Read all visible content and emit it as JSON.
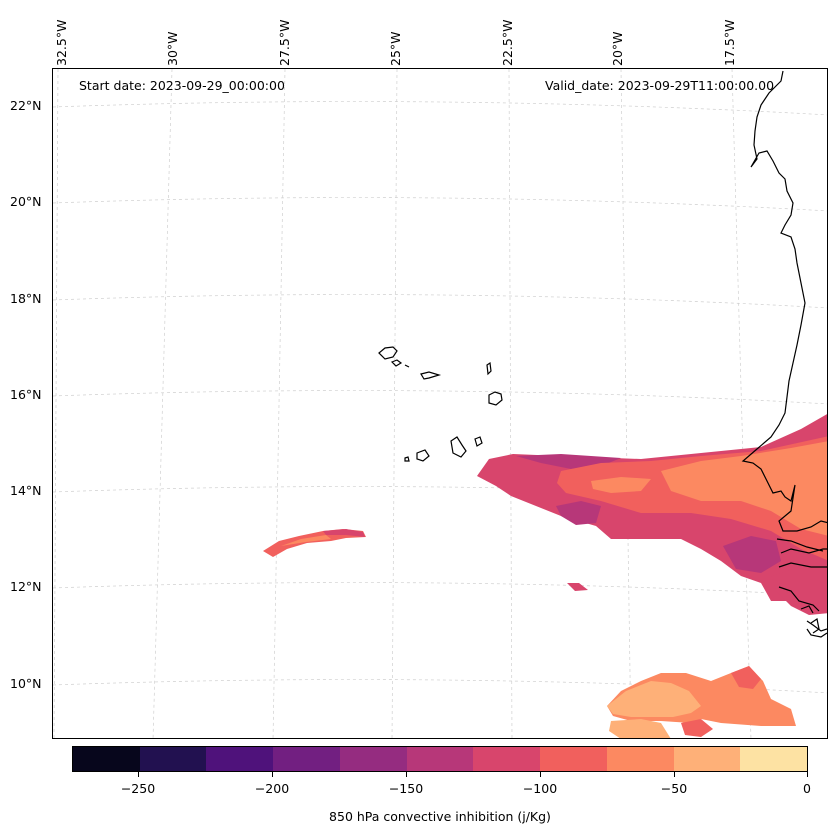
{
  "map": {
    "start_date": "Start date: 2023-09-29_00:00:00",
    "valid_date": "Valid_date: 2023-09-29T11:00:00.00",
    "lon_labels": [
      "32.5°W",
      "30°W",
      "27.5°W",
      "25°W",
      "22.5°W",
      "20°W",
      "17.5°W"
    ],
    "lat_labels": [
      "22°N",
      "20°N",
      "18°N",
      "16°N",
      "14°N",
      "12°N",
      "10°N"
    ],
    "variable": "850 hPa convective inhibition (j/Kg)",
    "colormap": "magma",
    "gridlines": true
  },
  "colorbar": {
    "title": "850 hPa convective inhibition (j/Kg)",
    "tick_labels": [
      "−250",
      "−200",
      "−150",
      "−100",
      "−50",
      "0"
    ],
    "levels": [
      -275,
      -250,
      -225,
      -200,
      -175,
      -150,
      -125,
      -100,
      -75,
      -50,
      -25,
      0
    ],
    "colors": [
      "#07061c",
      "#221150",
      "#4f127b",
      "#721f81",
      "#952c80",
      "#b73779",
      "#d8456c",
      "#f1605d",
      "#fc8961",
      "#feb078",
      "#fde2a3"
    ]
  }
}
